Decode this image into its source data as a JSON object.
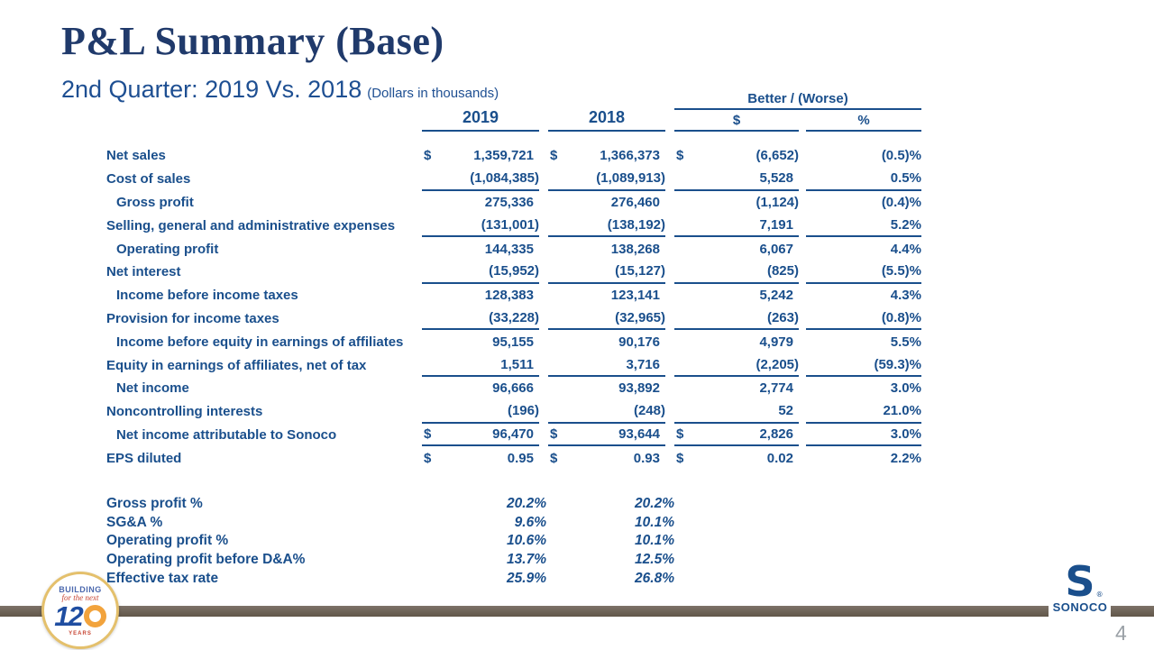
{
  "slide": {
    "title": "P&L Summary (Base)",
    "subtitle": "2nd Quarter: 2019 Vs. 2018",
    "subtitle_note": "(Dollars in thousands)",
    "page_number": "4"
  },
  "table": {
    "group_header": "Better / (Worse)",
    "col_2019": "2019",
    "col_2018": "2018",
    "col_dollar": "$",
    "col_pct": "%",
    "rows": [
      {
        "label": "Net sales",
        "ind": false,
        "d1": "$",
        "v1": "1,359,721",
        "d2": "$",
        "v2": "1,366,373",
        "d3": "$",
        "v3": "(6,652)",
        "v4": "(0.5)%",
        "u": false
      },
      {
        "label": "Cost of sales",
        "ind": false,
        "d1": "",
        "v1": "(1,084,385)",
        "d2": "",
        "v2": "(1,089,913)",
        "d3": "",
        "v3": "5,528",
        "v4": "0.5%",
        "u": true
      },
      {
        "label": "Gross profit",
        "ind": true,
        "d1": "",
        "v1": "275,336",
        "d2": "",
        "v2": "276,460",
        "d3": "",
        "v3": "(1,124)",
        "v4": "(0.4)%",
        "u": false
      },
      {
        "label": "Selling, general and administrative expenses",
        "ind": false,
        "d1": "",
        "v1": "(131,001)",
        "d2": "",
        "v2": "(138,192)",
        "d3": "",
        "v3": "7,191",
        "v4": "5.2%",
        "u": true
      },
      {
        "label": "Operating profit",
        "ind": true,
        "d1": "",
        "v1": "144,335",
        "d2": "",
        "v2": "138,268",
        "d3": "",
        "v3": "6,067",
        "v4": "4.4%",
        "u": false
      },
      {
        "label": "Net interest",
        "ind": false,
        "d1": "",
        "v1": "(15,952)",
        "d2": "",
        "v2": "(15,127)",
        "d3": "",
        "v3": "(825)",
        "v4": "(5.5)%",
        "u": true
      },
      {
        "label": "Income before income taxes",
        "ind": true,
        "d1": "",
        "v1": "128,383",
        "d2": "",
        "v2": "123,141",
        "d3": "",
        "v3": "5,242",
        "v4": "4.3%",
        "u": false
      },
      {
        "label": "Provision for income taxes",
        "ind": false,
        "d1": "",
        "v1": "(33,228)",
        "d2": "",
        "v2": "(32,965)",
        "d3": "",
        "v3": "(263)",
        "v4": "(0.8)%",
        "u": true
      },
      {
        "label": "Income before equity in earnings of affiliates",
        "ind": true,
        "d1": "",
        "v1": "95,155",
        "d2": "",
        "v2": "90,176",
        "d3": "",
        "v3": "4,979",
        "v4": "5.5%",
        "u": false
      },
      {
        "label": "Equity in earnings of affiliates, net of tax",
        "ind": false,
        "d1": "",
        "v1": "1,511",
        "d2": "",
        "v2": "3,716",
        "d3": "",
        "v3": "(2,205)",
        "v4": "(59.3)%",
        "u": true
      },
      {
        "label": "Net income",
        "ind": true,
        "d1": "",
        "v1": "96,666",
        "d2": "",
        "v2": "93,892",
        "d3": "",
        "v3": "2,774",
        "v4": "3.0%",
        "u": false
      },
      {
        "label": "Noncontrolling interests",
        "ind": false,
        "d1": "",
        "v1": "(196)",
        "d2": "",
        "v2": "(248)",
        "d3": "",
        "v3": "52",
        "v4": "21.0%",
        "u": true
      },
      {
        "label": "Net income attributable to Sonoco",
        "ind": true,
        "d1": "$",
        "v1": "96,470",
        "d2": "$",
        "v2": "93,644",
        "d3": "$",
        "v3": "2,826",
        "v4": "3.0%",
        "u": true
      },
      {
        "label": "EPS diluted",
        "ind": false,
        "d1": "$",
        "v1": "0.95",
        "d2": "$",
        "v2": "0.93",
        "d3": "$",
        "v3": "0.02",
        "v4": "2.2%",
        "u": false
      }
    ],
    "ratio_rows": [
      {
        "label": "Gross profit %",
        "v1": "20.2%",
        "v2": "20.2%"
      },
      {
        "label": "SG&A %",
        "v1": "9.6%",
        "v2": "10.1%"
      },
      {
        "label": "Operating profit %",
        "v1": "10.6%",
        "v2": "10.1%"
      },
      {
        "label": "Operating profit before D&A%",
        "v1": "13.7%",
        "v2": "12.5%"
      },
      {
        "label": "Effective tax rate",
        "v1": "25.9%",
        "v2": "26.8%"
      }
    ]
  },
  "footer": {
    "badge": {
      "label_top": "BUILDING",
      "label_script": "for the next",
      "number_full": "120",
      "number_prefix": "12",
      "years_label": "YEARS"
    },
    "logo": {
      "emblem_letter": "S",
      "reg_mark": "®",
      "word": "SONOCO"
    }
  },
  "colors": {
    "body_blue": "#1a4f8c",
    "title_blue": "#203a6b",
    "footer_bar": "#6d6257",
    "badge_ring": "#e4c06c",
    "badge_sun": "#f2a33c",
    "badge_red": "#c74634",
    "page_number_gray": "#9aa0a6"
  }
}
